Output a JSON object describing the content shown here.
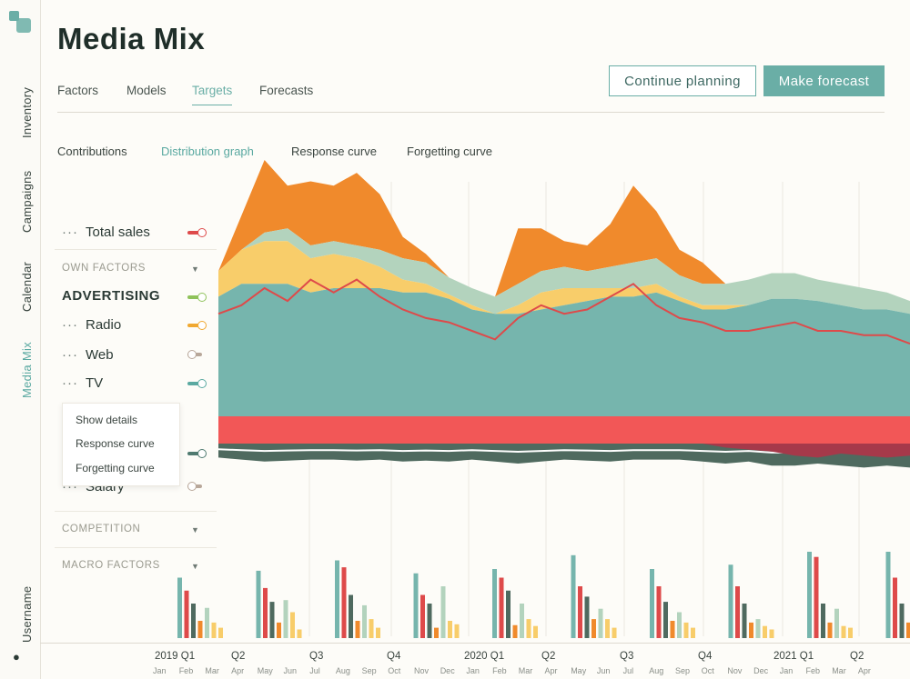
{
  "app": {
    "title": "Media Mix",
    "nav": [
      "Inventory",
      "Campaigns",
      "Calendar",
      "Media Mix",
      "Username"
    ],
    "active_nav": "Media Mix"
  },
  "tabs": [
    "Factors",
    "Models",
    "Targets",
    "Forecasts"
  ],
  "active_tab": "Targets",
  "buttons": {
    "continue": "Continue planning",
    "forecast": "Make forecast"
  },
  "subtabs": [
    "Contributions",
    "Distribution graph",
    "Response curve",
    "Forgetting curve"
  ],
  "active_subtab": "Distribution graph",
  "legend": {
    "total_sales": "Total sales",
    "own_factors": "OWN FACTORS",
    "advertising": "ADVERTISING",
    "radio": "Radio",
    "web": "Web",
    "tv": "TV",
    "salary": "Salary",
    "competition": "COMPETITION",
    "macro_factors": "MACRO FACTORS"
  },
  "popup": [
    "Show details",
    "Response curve",
    "Forgetting curve"
  ],
  "colors": {
    "teal": "#76b5ad",
    "orange": "#f08a2c",
    "yellow": "#f8cd6a",
    "sage": "#b3d3bd",
    "red_line": "#de4a4a",
    "red_band": "#f25757",
    "dark": "#4f6a5f",
    "maroon": "#a6394a",
    "green_toggle": "#8fc25a",
    "grey_toggle": "#b8a79a"
  },
  "chart_data": {
    "type": "area",
    "quarter_labels": [
      "2019 Q1",
      "Q2",
      "Q3",
      "Q4",
      "2020 Q1",
      "Q2",
      "Q3",
      "Q4",
      "2021 Q1",
      "Q2"
    ],
    "month_labels": [
      "Jan",
      "Feb",
      "Mar",
      "Apr",
      "May",
      "Jun",
      "Jul",
      "Aug",
      "Sep",
      "Oct",
      "Nov",
      "Dec",
      "Jan",
      "Feb",
      "Mar",
      "Apr",
      "May",
      "Jun",
      "Jul",
      "Aug",
      "Sep",
      "Oct",
      "Nov",
      "Dec",
      "Jan",
      "Feb",
      "Mar",
      "Apr"
    ],
    "stack": {
      "base": [
        56,
        62,
        62,
        62,
        58,
        60,
        60,
        60,
        58,
        58,
        55,
        50,
        48,
        48,
        50,
        52,
        54,
        56,
        56,
        58,
        54,
        50,
        50,
        52,
        55,
        55,
        54,
        52,
        50,
        50,
        48
      ],
      "yellow": [
        12,
        16,
        20,
        20,
        16,
        16,
        14,
        10,
        6,
        4,
        2,
        2,
        0,
        4,
        8,
        8,
        6,
        4,
        4,
        4,
        2,
        2,
        2,
        0,
        0,
        0,
        0,
        0,
        0,
        0,
        0
      ],
      "sage": [
        0,
        0,
        4,
        6,
        6,
        6,
        6,
        8,
        10,
        10,
        8,
        8,
        8,
        10,
        10,
        10,
        8,
        10,
        12,
        12,
        10,
        10,
        10,
        12,
        12,
        12,
        10,
        10,
        10,
        8,
        6
      ],
      "orange": [
        0,
        16,
        34,
        20,
        30,
        26,
        34,
        26,
        10,
        4,
        0,
        0,
        0,
        26,
        20,
        12,
        12,
        20,
        36,
        22,
        12,
        10,
        0,
        0,
        0,
        0,
        0,
        0,
        0,
        0,
        0
      ]
    },
    "total_sales": [
      48,
      52,
      60,
      54,
      64,
      58,
      64,
      56,
      50,
      46,
      44,
      40,
      36,
      46,
      52,
      48,
      50,
      56,
      62,
      52,
      46,
      44,
      40,
      40,
      42,
      44,
      40,
      40,
      38,
      38,
      34
    ],
    "negative": [
      14,
      16,
      18,
      17,
      16,
      16,
      17,
      16,
      18,
      17,
      18,
      16,
      18,
      20,
      18,
      16,
      17,
      18,
      16,
      16,
      16,
      18,
      20,
      18,
      22,
      22,
      20,
      22,
      24,
      22,
      24
    ],
    "maroon": [
      0,
      0,
      0,
      0,
      0,
      0,
      0,
      0,
      0,
      0,
      0,
      0,
      0,
      0,
      0,
      0,
      0,
      0,
      0,
      0,
      0,
      0,
      4,
      6,
      8,
      12,
      14,
      10,
      12,
      14,
      12
    ],
    "bar_groups": [
      [
        70,
        55,
        40,
        20,
        35,
        18,
        12
      ],
      [
        78,
        58,
        42,
        18,
        44,
        30,
        10
      ],
      [
        90,
        82,
        50,
        20,
        38,
        22,
        12
      ],
      [
        75,
        50,
        40,
        12,
        60,
        20,
        16
      ],
      [
        80,
        70,
        55,
        15,
        40,
        22,
        14
      ],
      [
        96,
        60,
        48,
        22,
        34,
        22,
        12
      ],
      [
        80,
        60,
        42,
        20,
        30,
        18,
        12
      ],
      [
        85,
        60,
        40,
        18,
        22,
        14,
        10
      ],
      [
        100,
        94,
        40,
        18,
        34,
        14,
        12
      ],
      [
        100,
        70,
        40,
        18,
        46,
        20,
        12
      ],
      [
        100,
        66,
        36,
        18,
        34,
        18,
        14
      ]
    ]
  }
}
